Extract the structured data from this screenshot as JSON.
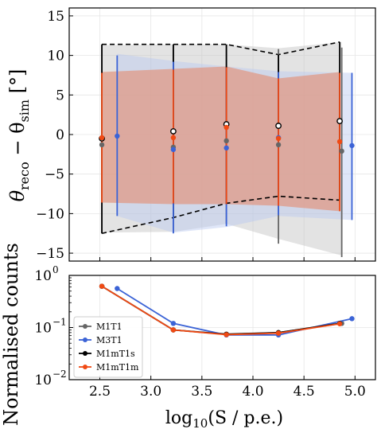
{
  "chart_data": [
    {
      "type": "line",
      "panel": "top",
      "ylabel_main": "θ",
      "ylabel_sub1": "reco",
      "ylabel_mid": " − θ",
      "ylabel_sub2": "sim",
      "ylabel_unit": " [°]",
      "ylim": [
        -16,
        16
      ],
      "xlim": [
        2.2,
        5.2
      ],
      "yticks": [
        "−15",
        "−10",
        "−5",
        "0",
        "5",
        "10",
        "15"
      ],
      "ytick_values": [
        -15,
        -10,
        -5,
        0,
        5,
        10,
        15
      ],
      "grid": true,
      "series": [
        {
          "name": "M1T1",
          "color": "#666666",
          "x": [
            2.52,
            3.22,
            3.74,
            4.25,
            4.87
          ],
          "mean": [
            -1.3,
            -1.6,
            -0.8,
            -1.3,
            -2.1
          ],
          "lo": [
            -12.5,
            -12.4,
            -11.3,
            -13.8,
            -15.5
          ],
          "hi": [
            11.3,
            11.3,
            11.3,
            10.8,
            11.0
          ],
          "band_lo": [
            -12.4,
            -12.3,
            -11.3,
            -13.2,
            -15.3
          ],
          "band_hi": [
            11.3,
            11.4,
            11.4,
            10.9,
            11.7
          ],
          "band_color": "#c0c0c0"
        },
        {
          "name": "M3T1",
          "color": "#3b63d6",
          "x": [
            2.67,
            3.22,
            3.74,
            4.25,
            4.97
          ],
          "mean": [
            -0.2,
            -1.9,
            -1.7,
            -0.4,
            -1.4
          ],
          "lo": [
            -10.3,
            -12.5,
            -11.6,
            -10.2,
            -10.8
          ],
          "hi": [
            10.0,
            9.2,
            8.5,
            7.9,
            7.8
          ],
          "band_lo": [
            -10.3,
            -12.4,
            -11.7,
            -10.3,
            -10.8
          ],
          "band_hi": [
            10.2,
            9.3,
            8.6,
            8.0,
            7.8
          ],
          "band_color": "#b8c8f0"
        },
        {
          "name": "M1mT1s",
          "color": "#000000",
          "marker": "hollow",
          "x": [
            2.52,
            3.22,
            3.74,
            4.25,
            4.85
          ],
          "mean": [
            -0.5,
            0.4,
            1.3,
            1.1,
            1.7
          ],
          "lo": [
            -12.5,
            -10.5,
            -8.7,
            -7.8,
            -8.3
          ],
          "hi": [
            11.4,
            11.4,
            11.4,
            10.1,
            11.7
          ]
        },
        {
          "name": "M1mT1m",
          "color": "#f04a14",
          "x": [
            2.52,
            3.22,
            3.74,
            4.25,
            4.85
          ],
          "mean": [
            -0.4,
            -0.4,
            0.9,
            -0.5,
            -0.9
          ],
          "lo": [
            -8.6,
            -8.7,
            -8.8,
            -9.0,
            -9.7
          ],
          "hi": [
            7.8,
            8.2,
            8.5,
            7.1,
            7.8
          ],
          "band_lo": [
            -8.6,
            -8.8,
            -8.8,
            -9.0,
            -9.7
          ],
          "band_hi": [
            7.9,
            8.3,
            8.6,
            7.1,
            7.9
          ],
          "band_color": "#e09a85"
        }
      ]
    },
    {
      "type": "line",
      "panel": "bottom",
      "ylabel": "Normalised counts",
      "xlabel": "log",
      "xlabel_sub": "10",
      "xlabel_rest": "(S / p.e.)",
      "yscale": "log",
      "ylim": [
        0.01,
        1.0
      ],
      "xlim": [
        2.2,
        5.2
      ],
      "xticks": [
        "2.5",
        "3.0",
        "3.5",
        "4.0",
        "4.5",
        "5.0"
      ],
      "xtick_values": [
        2.5,
        3.0,
        3.5,
        4.0,
        4.5,
        5.0
      ],
      "yticks_base": [
        "10",
        "10",
        "10"
      ],
      "yticks_exp": [
        "0",
        "−1",
        "−2"
      ],
      "ytick_values": [
        1.0,
        0.1,
        0.01
      ],
      "grid": true,
      "legend_position": "bottom-left",
      "series": [
        {
          "name": "M1T1",
          "color": "#666666",
          "x": [
            2.52,
            3.22,
            3.74,
            4.25,
            4.87
          ],
          "y": [
            0.62,
            0.09,
            0.075,
            0.08,
            0.12
          ]
        },
        {
          "name": "M3T1",
          "color": "#3b63d6",
          "x": [
            2.67,
            3.22,
            3.74,
            4.25,
            4.97
          ],
          "y": [
            0.56,
            0.12,
            0.072,
            0.072,
            0.148
          ]
        },
        {
          "name": "M1mT1s",
          "color": "#000000",
          "x": [
            2.52,
            3.22,
            3.74,
            4.25,
            4.85
          ],
          "y": [
            0.62,
            0.09,
            0.074,
            0.08,
            0.12
          ]
        },
        {
          "name": "M1mT1m",
          "color": "#f04a14",
          "x": [
            2.52,
            3.22,
            3.74,
            4.25,
            4.85
          ],
          "y": [
            0.62,
            0.09,
            0.073,
            0.078,
            0.118
          ]
        }
      ]
    }
  ]
}
